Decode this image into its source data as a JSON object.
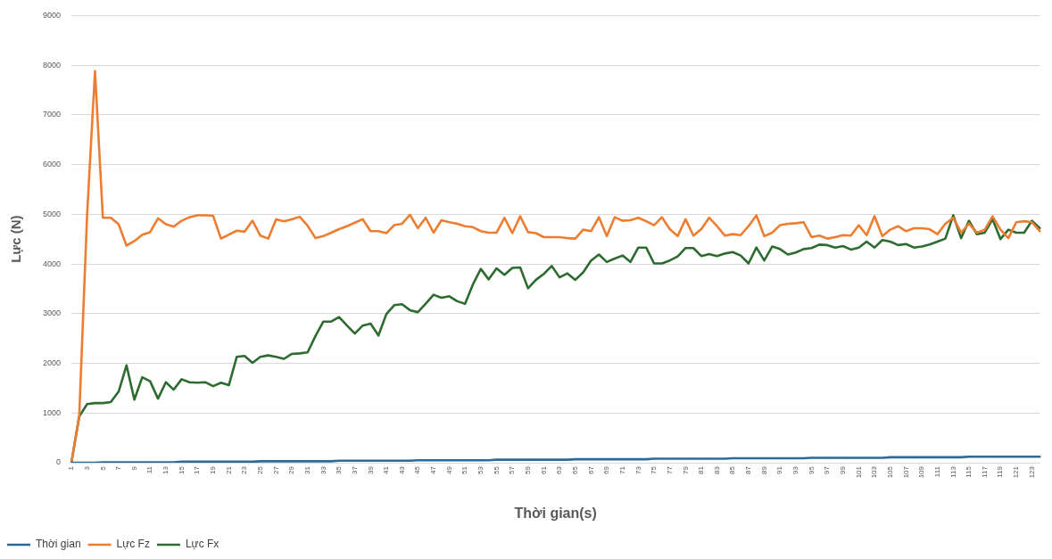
{
  "chart_data": {
    "type": "line",
    "xlabel": "Thời gian(s)",
    "ylabel": "Lực (N)",
    "categories": [
      "1",
      null,
      "3",
      null,
      "5",
      null,
      "7",
      null,
      "9",
      null,
      "11",
      null,
      "13",
      null,
      "15",
      null,
      "17",
      null,
      "19",
      null,
      "21",
      null,
      "23",
      null,
      "25",
      null,
      "27",
      null,
      "29",
      null,
      "31",
      null,
      "33",
      null,
      "35",
      null,
      "37",
      null,
      "39",
      null,
      "41",
      null,
      "43",
      null,
      "45",
      null,
      "47",
      null,
      "49",
      null,
      "51",
      null,
      "53",
      null,
      "55",
      null,
      "57",
      null,
      "59",
      null,
      "61",
      null,
      "63",
      null,
      "65",
      null,
      "67",
      null,
      "69",
      null,
      "71",
      null,
      "73",
      null,
      "75",
      null,
      "77",
      null,
      "79",
      null,
      "81",
      null,
      "83",
      null,
      "85",
      null,
      "87",
      null,
      "89",
      null,
      "91",
      null,
      "93",
      null,
      "95",
      null,
      "97",
      null,
      "99",
      null,
      "101",
      null,
      "103",
      null,
      "105",
      null,
      "107",
      null,
      "109",
      null,
      "111",
      null,
      "113",
      null,
      "115",
      null,
      "117",
      null,
      "119",
      null,
      "121",
      null,
      "123",
      null
    ],
    "series": [
      {
        "name": "Thời gian",
        "color": "#2b6a99",
        "values": [
          0,
          0,
          0,
          0,
          10,
          10,
          10,
          10,
          10,
          10,
          10,
          10,
          10,
          10,
          20,
          20,
          20,
          20,
          20,
          20,
          20,
          20,
          20,
          20,
          30,
          30,
          30,
          30,
          30,
          30,
          30,
          30,
          30,
          30,
          40,
          40,
          40,
          40,
          40,
          40,
          40,
          40,
          40,
          40,
          50,
          50,
          50,
          50,
          50,
          50,
          50,
          50,
          50,
          50,
          60,
          60,
          60,
          60,
          60,
          60,
          60,
          60,
          60,
          60,
          70,
          70,
          70,
          70,
          70,
          70,
          70,
          70,
          70,
          70,
          80,
          80,
          80,
          80,
          80,
          80,
          80,
          80,
          80,
          80,
          90,
          90,
          90,
          90,
          90,
          90,
          90,
          90,
          90,
          90,
          100,
          100,
          100,
          100,
          100,
          100,
          100,
          100,
          100,
          100,
          110,
          110,
          110,
          110,
          110,
          110,
          110,
          110,
          110,
          110,
          120,
          120,
          120,
          120,
          120,
          120,
          120,
          120,
          120,
          120
        ]
      },
      {
        "name": "Lực Fz",
        "color": "#ed7d31",
        "values": [
          0,
          950,
          5000,
          7880,
          4930,
          4930,
          4800,
          4370,
          4460,
          4590,
          4640,
          4920,
          4800,
          4750,
          4870,
          4940,
          4980,
          4980,
          4970,
          4510,
          4590,
          4670,
          4650,
          4870,
          4570,
          4510,
          4900,
          4860,
          4900,
          4950,
          4770,
          4520,
          4560,
          4630,
          4700,
          4760,
          4830,
          4900,
          4660,
          4660,
          4620,
          4780,
          4810,
          4990,
          4720,
          4930,
          4630,
          4880,
          4840,
          4810,
          4760,
          4740,
          4660,
          4630,
          4630,
          4930,
          4620,
          4960,
          4640,
          4620,
          4540,
          4540,
          4540,
          4520,
          4510,
          4690,
          4660,
          4940,
          4560,
          4940,
          4870,
          4880,
          4930,
          4860,
          4780,
          4940,
          4700,
          4560,
          4900,
          4570,
          4700,
          4930,
          4760,
          4570,
          4600,
          4580,
          4760,
          4980,
          4560,
          4630,
          4780,
          4810,
          4820,
          4840,
          4540,
          4570,
          4510,
          4540,
          4580,
          4570,
          4780,
          4580,
          4960,
          4560,
          4690,
          4760,
          4660,
          4720,
          4720,
          4700,
          4600,
          4810,
          4930,
          4630,
          4810,
          4630,
          4690,
          4960,
          4690,
          4520,
          4840,
          4860,
          4840,
          4660
        ]
      },
      {
        "name": "Lực Fx",
        "color": "#2e6b30",
        "values": [
          0,
          930,
          1180,
          1200,
          1200,
          1220,
          1430,
          1960,
          1270,
          1720,
          1640,
          1290,
          1620,
          1470,
          1680,
          1620,
          1610,
          1620,
          1540,
          1610,
          1560,
          2130,
          2150,
          2010,
          2130,
          2160,
          2130,
          2090,
          2190,
          2200,
          2220,
          2550,
          2840,
          2840,
          2930,
          2760,
          2600,
          2760,
          2800,
          2560,
          2990,
          3170,
          3190,
          3070,
          3030,
          3200,
          3380,
          3320,
          3350,
          3250,
          3200,
          3590,
          3900,
          3690,
          3910,
          3780,
          3920,
          3930,
          3510,
          3680,
          3800,
          3960,
          3730,
          3810,
          3680,
          3830,
          4070,
          4190,
          4040,
          4110,
          4170,
          4040,
          4330,
          4330,
          4010,
          4010,
          4070,
          4150,
          4320,
          4320,
          4160,
          4200,
          4160,
          4210,
          4240,
          4170,
          4010,
          4330,
          4070,
          4350,
          4300,
          4190,
          4230,
          4300,
          4320,
          4390,
          4380,
          4330,
          4360,
          4290,
          4330,
          4450,
          4330,
          4480,
          4450,
          4380,
          4400,
          4330,
          4350,
          4390,
          4450,
          4510,
          4980,
          4520,
          4870,
          4600,
          4630,
          4900,
          4500,
          4690,
          4630,
          4630,
          4870,
          4720
        ]
      }
    ],
    "ylim": [
      0,
      9000
    ],
    "yticks": [
      0,
      1000,
      2000,
      3000,
      4000,
      5000,
      6000,
      7000,
      8000,
      9000
    ],
    "grid": "y",
    "legend": "bottom left",
    "marker": "none",
    "line_style": "solid"
  }
}
